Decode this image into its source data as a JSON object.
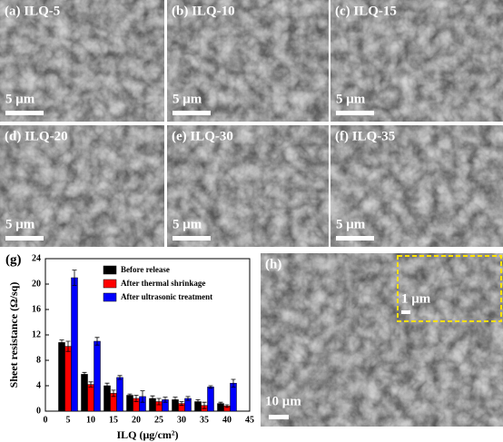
{
  "panels": [
    {
      "label": "(a) ILQ-5",
      "scale": "5 μm"
    },
    {
      "label": "(b) ILQ-10",
      "scale": "5 μm"
    },
    {
      "label": "(c) ILQ-15",
      "scale": "5 μm"
    },
    {
      "label": "(d) ILQ-20",
      "scale": "5 μm"
    },
    {
      "label": "(e) ILQ-30",
      "scale": "5 μm"
    },
    {
      "label": "(f) ILQ-35",
      "scale": "5 μm"
    }
  ],
  "panel_h": {
    "label": "(h)",
    "scale": "10 μm",
    "inset_scale": "1 μm"
  },
  "chart_data": {
    "type": "bar",
    "panel_label": "(g)",
    "x_label": "ILQ (μg/cm²)",
    "y_label": "Sheet resistance (Ω/sq)",
    "x": [
      5,
      10,
      15,
      20,
      25,
      30,
      35,
      40
    ],
    "series": [
      {
        "name": "Before release",
        "color": "#000000",
        "values": [
          10.8,
          5.8,
          4.0,
          2.5,
          2.0,
          1.8,
          1.5,
          1.2
        ],
        "errors": [
          0.4,
          0.3,
          0.4,
          0.2,
          0.4,
          0.4,
          0.3,
          0.2
        ]
      },
      {
        "name": "After thermal shrinkage",
        "color": "#ff0000",
        "values": [
          10.2,
          4.2,
          2.8,
          2.0,
          1.5,
          1.2,
          0.9,
          0.8
        ],
        "errors": [
          0.8,
          0.4,
          0.5,
          0.5,
          0.5,
          0.3,
          0.5,
          0.2
        ]
      },
      {
        "name": "After ultrasonic treatment",
        "color": "#0000ff",
        "values": [
          21.0,
          11.0,
          5.3,
          2.3,
          1.8,
          2.0,
          3.8,
          4.4
        ],
        "errors": [
          1.2,
          0.6,
          0.3,
          0.9,
          0.4,
          0.3,
          0.2,
          0.6
        ]
      }
    ],
    "xlim": [
      0,
      45
    ],
    "xticks": [
      0,
      5,
      10,
      15,
      20,
      25,
      30,
      35,
      40,
      45
    ],
    "ylim": [
      0,
      24
    ],
    "yticks": [
      0,
      4,
      8,
      12,
      16,
      20,
      24
    ],
    "legend": "upper left"
  }
}
